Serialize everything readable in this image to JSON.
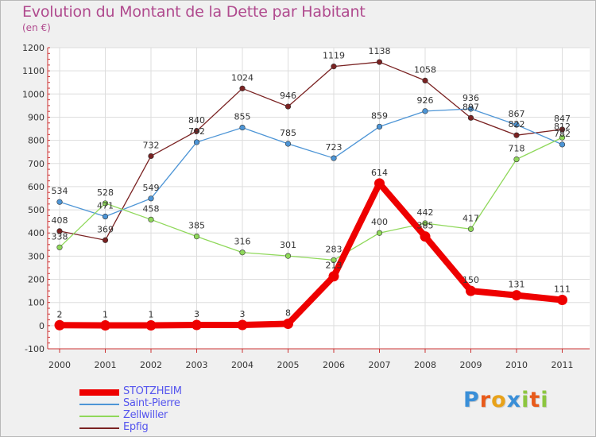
{
  "chart_data": {
    "type": "line",
    "title": "Evolution du Montant de la Dette par Habitant",
    "subtitle": "(en €)",
    "categories": [
      "2000",
      "2001",
      "2002",
      "2003",
      "2004",
      "2005",
      "2006",
      "2007",
      "2008",
      "2009",
      "2010",
      "2011"
    ],
    "ylim": [
      -100,
      1200
    ],
    "yticks": [
      "-100",
      "0",
      "100",
      "200",
      "300",
      "400",
      "500",
      "600",
      "700",
      "800",
      "900",
      "1000",
      "1100",
      "1200"
    ],
    "grid": true,
    "series": [
      {
        "name": "STOTZHEIM",
        "color": "#ee0000",
        "values": [
          2,
          1,
          1,
          3,
          3,
          8,
          213,
          614,
          385,
          150,
          131,
          111
        ],
        "labels": [
          "2",
          "1",
          "1",
          "3",
          "3",
          "8",
          "213",
          "614",
          "385",
          "150",
          "131",
          "111"
        ]
      },
      {
        "name": "Saint-Pierre",
        "color": "#4d95d6",
        "values": [
          534,
          471,
          549,
          792,
          855,
          785,
          723,
          859,
          926,
          936,
          867,
          782
        ],
        "labels": [
          "534",
          "471",
          "549",
          "792",
          "855",
          "785",
          "723",
          "859",
          "926",
          "936",
          "867",
          "782"
        ]
      },
      {
        "name": "Zellwiller",
        "color": "#8fd85a",
        "values": [
          338,
          528,
          458,
          385,
          316,
          301,
          283,
          400,
          442,
          417,
          718,
          812
        ],
        "labels": [
          "338",
          "528",
          "458",
          "385",
          "316",
          "301",
          "283",
          "400",
          "442",
          "417",
          "718",
          "812"
        ]
      },
      {
        "name": "Epfig",
        "color": "#7a2222",
        "values": [
          408,
          369,
          732,
          840,
          1024,
          946,
          1119,
          1138,
          1058,
          897,
          822,
          847
        ],
        "labels": [
          "408",
          "369",
          "732",
          "840",
          "1024",
          "946",
          "1119",
          "1138",
          "1058",
          "897",
          "822",
          "847"
        ]
      }
    ]
  },
  "legend": {
    "items": [
      {
        "name": "STOTZHEIM",
        "color": "#ee0000"
      },
      {
        "name": "Saint-Pierre",
        "color": "#4d95d6"
      },
      {
        "name": "Zellwiller",
        "color": "#8fd85a"
      },
      {
        "name": "Epfig",
        "color": "#7a2222"
      }
    ],
    "text_color": "#5555ee"
  },
  "logo": {
    "letters": [
      "P",
      "r",
      "o",
      "x",
      "i",
      "t",
      "i"
    ],
    "colors": [
      "#3a8fd8",
      "#e85a1a",
      "#e8a21a",
      "#3a8fd8",
      "#8cc63f",
      "#e85a1a",
      "#8cc63f"
    ]
  }
}
